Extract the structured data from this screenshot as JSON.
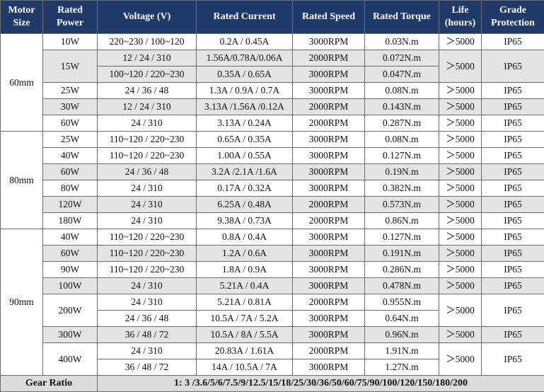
{
  "table": {
    "header": [
      [
        "Motor",
        "Size"
      ],
      [
        "Rated",
        "Power"
      ],
      [
        "Voltage (V)"
      ],
      [
        "Rated Current"
      ],
      [
        "Rated Speed"
      ],
      [
        "Rated Torque"
      ],
      [
        "Life",
        "(hours)"
      ],
      [
        "Grade",
        "Protection"
      ]
    ],
    "groups": [
      {
        "size": "60mm",
        "rows": [
          {
            "power": "10W",
            "sub": [
              [
                "220~230 / 100~120",
                "0.2A / 0.45A",
                "3000RPM",
                "0.03N.m"
              ]
            ],
            "life": "＞5000",
            "protection": "IP65"
          },
          {
            "power": "15W",
            "sub": [
              [
                "12 / 24 / 310",
                "1.56A/0.78A/0.06A",
                "2000RPM",
                "0.072N.m"
              ],
              [
                "100~120 / 220~230",
                "0.35A / 0.65A",
                "3000RPM",
                "0.047N.m"
              ]
            ],
            "life": "＞5000",
            "protection": "IP65"
          },
          {
            "power": "25W",
            "sub": [
              [
                "24 / 36 / 48",
                "1.3A / 0.9A / 0.7A",
                "3000RPM",
                "0.08N.m"
              ]
            ],
            "life": "＞5000",
            "protection": "IP65"
          },
          {
            "power": "30W",
            "sub": [
              [
                "12 / 24 / 310",
                "3.13A /1.56A /0.12A",
                "2000RPM",
                "0.143N.m"
              ]
            ],
            "life": "＞5000",
            "protection": "IP65"
          },
          {
            "power": "60W",
            "sub": [
              [
                "24 / 310",
                "3.13A / 0.24A",
                "2000RPM",
                "0.287N.m"
              ]
            ],
            "life": "＞5000",
            "protection": "IP65"
          }
        ]
      },
      {
        "size": "80mm",
        "rows": [
          {
            "power": "25W",
            "sub": [
              [
                "110~120 / 220~230",
                "0.65A / 0.35A",
                "3000RPM",
                "0.08N.m"
              ]
            ],
            "life": "＞5000",
            "protection": "IP65"
          },
          {
            "power": "40W",
            "sub": [
              [
                "110~120 / 220~230",
                "1.00A / 0.55A",
                "3000RPM",
                "0.127N.m"
              ]
            ],
            "life": "＞5000",
            "protection": "IP65"
          },
          {
            "power": "60W",
            "sub": [
              [
                "24 / 36 / 48",
                "3.2A /2.1A /1.6A",
                "3000RPM",
                "0.19N.m"
              ]
            ],
            "life": "＞5000",
            "protection": "IP65"
          },
          {
            "power": "80W",
            "sub": [
              [
                "24 / 310",
                "0.17A / 0.32A",
                "3000RPM",
                "0.382N.m"
              ]
            ],
            "life": "＞5000",
            "protection": "IP65"
          },
          {
            "power": "120W",
            "sub": [
              [
                "24 / 310",
                "6.25A / 0.48A",
                "2000RPM",
                "0.573N.m"
              ]
            ],
            "life": "＞5000",
            "protection": "IP65"
          },
          {
            "power": "180W",
            "sub": [
              [
                "24 / 310",
                "9.38A / 0.73A",
                "2000RPM",
                "0.86N.m"
              ]
            ],
            "life": "＞5000",
            "protection": "IP65"
          }
        ]
      },
      {
        "size": "90mm",
        "rows": [
          {
            "power": "40W",
            "sub": [
              [
                "110~120 / 220~230",
                "0.8A / 0.4A",
                "3000RPM",
                "0.127N.m"
              ]
            ],
            "life": "＞5000",
            "protection": "IP65"
          },
          {
            "power": "60W",
            "sub": [
              [
                "110~120 / 220~230",
                "1.2A / 0.6A",
                "3000RPM",
                "0.191N.m"
              ]
            ],
            "life": "＞5000",
            "protection": "IP65"
          },
          {
            "power": "90W",
            "sub": [
              [
                "110~120 / 220~230",
                "1.8A / 0.9A",
                "3000RPM",
                "0.286N.m"
              ]
            ],
            "life": "＞5000",
            "protection": "IP65"
          },
          {
            "power": "100W",
            "sub": [
              [
                "24 / 310",
                "5.21A / 0.4A",
                "3000RPM",
                "0.478N.m"
              ]
            ],
            "life": "＞5000",
            "protection": "IP65"
          },
          {
            "power": "200W",
            "sub": [
              [
                "24 / 310",
                "5.21A / 0.81A",
                "2000RPM",
                "0.955N.m"
              ],
              [
                "24 / 36 / 48",
                "10.5A / 7A / 5.2A",
                "3000RPM",
                "0.64N.m"
              ]
            ],
            "life": "＞5000",
            "protection": "IP65"
          },
          {
            "power": "300W",
            "sub": [
              [
                "36 / 48 / 72",
                "10.5A / 8A / 5.5A",
                "3000RPM",
                "0.96N.m"
              ]
            ],
            "life": "＞5000",
            "protection": "IP65"
          },
          {
            "power": "400W",
            "sub": [
              [
                "24 / 310",
                "20.83A / 1.61A",
                "2000RPM",
                "1.91N.m"
              ],
              [
                "36 / 48 / 72",
                "14A / 10.5A / 7A",
                "3000RPM",
                "1.27N.m"
              ]
            ],
            "life": "＞5000",
            "protection": "IP65"
          }
        ]
      }
    ],
    "footer": {
      "label": "Gear Ratio",
      "value": "1: 3 /3.6/5/6/7.5/9/12.5/15/18/25/30/36/50/60/75/90/100/120/150/180/200"
    }
  }
}
